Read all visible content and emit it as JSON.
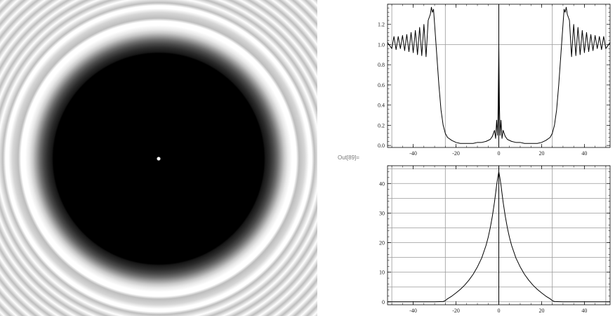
{
  "output_label": "Out[89]=",
  "image": {
    "background": "#ffffff",
    "ring_color": "#bdbdbd",
    "core_color": "#000000",
    "center_dot_color": "#ffffff"
  },
  "chart_data": [
    {
      "type": "line",
      "title": "",
      "xlabel": "",
      "ylabel": "",
      "xlim": [
        -52,
        52
      ],
      "ylim": [
        -0.02,
        1.4
      ],
      "xticks": [
        -40,
        -20,
        0,
        20,
        40
      ],
      "yticks": [
        0.0,
        0.2,
        0.4,
        0.6,
        0.8,
        1.0,
        1.2
      ],
      "ytick_labels": [
        "0.0",
        "0.2",
        "0.4",
        "0.6",
        "0.8",
        "1.0",
        "1.2"
      ],
      "grid_x": [
        -50,
        -25,
        0,
        25,
        50
      ],
      "grid_y": [
        1.0
      ],
      "series": [
        {
          "values": {
            "x": [
              -52,
              -50,
              -49,
              -48,
              -47,
              -46,
              -45,
              -44,
              -43,
              -42,
              -41,
              -40,
              -39,
              -38,
              -37,
              -36,
              -35,
              -34,
              -33,
              -32,
              -31.5,
              -31,
              -30.5,
              -30,
              -29,
              -28,
              -27,
              -26,
              -25,
              -24,
              -22,
              -20,
              -18,
              -16,
              -14,
              -12,
              -10,
              -8,
              -6,
              -4,
              -3,
              -2,
              -1.5,
              -1,
              -0.6,
              -0.3,
              0,
              0.3,
              0.6,
              1,
              1.5,
              2,
              3,
              4,
              6,
              8,
              10,
              12,
              14,
              16,
              18,
              20,
              22,
              24,
              25,
              26,
              27,
              28,
              29,
              30,
              30.5,
              31,
              31.5,
              32,
              33,
              34,
              35,
              36,
              37,
              38,
              39,
              40,
              41,
              42,
              43,
              44,
              45,
              46,
              47,
              48,
              49,
              50,
              52
            ],
            "y": [
              1.02,
              0.96,
              1.08,
              0.95,
              1.08,
              0.96,
              1.09,
              0.94,
              1.1,
              0.93,
              1.12,
              0.92,
              1.14,
              0.9,
              1.17,
              0.89,
              1.2,
              0.88,
              1.24,
              1.3,
              1.37,
              1.32,
              1.35,
              1.2,
              0.9,
              0.6,
              0.35,
              0.2,
              0.12,
              0.08,
              0.05,
              0.03,
              0.02,
              0.02,
              0.02,
              0.02,
              0.03,
              0.03,
              0.04,
              0.06,
              0.09,
              0.15,
              0.07,
              0.25,
              0.1,
              0.4,
              1.0,
              0.4,
              0.1,
              0.25,
              0.07,
              0.15,
              0.09,
              0.06,
              0.04,
              0.03,
              0.03,
              0.02,
              0.02,
              0.02,
              0.02,
              0.03,
              0.05,
              0.08,
              0.12,
              0.2,
              0.35,
              0.6,
              0.9,
              1.2,
              1.35,
              1.32,
              1.37,
              1.3,
              1.24,
              0.88,
              1.2,
              0.89,
              1.17,
              0.9,
              1.14,
              0.92,
              1.12,
              0.93,
              1.1,
              0.94,
              1.09,
              0.96,
              1.08,
              0.95,
              1.08,
              0.96,
              1.02
            ]
          },
          "color": "#000000"
        }
      ]
    },
    {
      "type": "line",
      "title": "",
      "xlabel": "",
      "ylabel": "",
      "xlim": [
        -52,
        52
      ],
      "ylim": [
        -1,
        46
      ],
      "xticks": [
        -40,
        -20,
        0,
        20,
        40
      ],
      "yticks": [
        0,
        10,
        20,
        30,
        40
      ],
      "ytick_labels": [
        "0",
        "10",
        "20",
        "30",
        "40"
      ],
      "grid_x": [
        -50,
        -25,
        0,
        25,
        50
      ],
      "grid_y": [
        0,
        5,
        10,
        15,
        20,
        25,
        30,
        35,
        40,
        45
      ],
      "series": [
        {
          "values": {
            "x": [
              -52,
              -40,
              -30,
              -26,
              -25,
              -24,
              -22,
              -20,
              -18,
              -16,
              -14,
              -12,
              -10,
              -8,
              -6,
              -5,
              -4,
              -3,
              -2,
              -1,
              -0.5,
              0,
              0.5,
              1,
              2,
              3,
              4,
              5,
              6,
              8,
              10,
              12,
              14,
              16,
              18,
              20,
              22,
              24,
              25,
              26,
              30,
              40,
              52
            ],
            "y": [
              0,
              0,
              0,
              0.1,
              0.4,
              1.0,
              1.9,
              3.0,
              4.2,
              5.6,
              7.3,
              9.3,
              11.8,
              14.8,
              19.0,
              21.7,
              25.0,
              29.0,
              33.8,
              39.5,
              42.0,
              44.0,
              42.0,
              39.5,
              33.8,
              29.0,
              25.0,
              21.7,
              19.0,
              14.8,
              11.8,
              9.3,
              7.3,
              5.6,
              4.2,
              3.0,
              1.9,
              1.0,
              0.4,
              0.1,
              0,
              0,
              0
            ]
          },
          "color": "#000000"
        }
      ]
    }
  ]
}
